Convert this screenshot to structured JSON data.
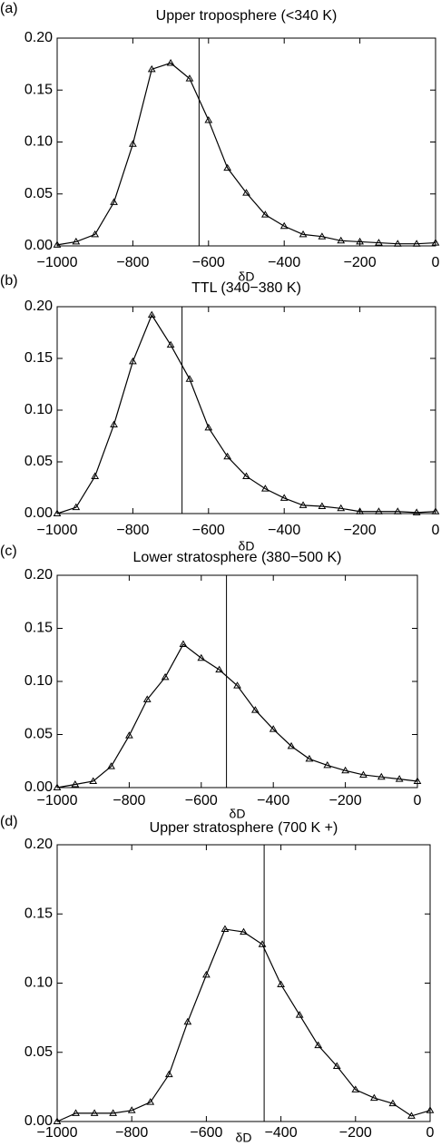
{
  "chart_data": [
    {
      "type": "line",
      "panel_label": "(a)",
      "title": "Upper troposphere (<340 K)",
      "x_label": "δD",
      "x": [
        -1000,
        -950,
        -900,
        -850,
        -800,
        -750,
        -700,
        -650,
        -600,
        -550,
        -500,
        -450,
        -400,
        -350,
        -300,
        -250,
        -200,
        -150,
        -100,
        -50,
        0
      ],
      "series": [
        {
          "color": "#000000",
          "values": [
            0.001,
            0.004,
            0.011,
            0.042,
            0.098,
            0.17,
            0.176,
            0.161,
            0.121,
            0.075,
            0.051,
            0.03,
            0.019,
            0.011,
            0.009,
            0.005,
            0.004,
            0.003,
            0.002,
            0.002,
            0.003
          ]
        }
      ],
      "vline": -625,
      "xlim": [
        -1000,
        0
      ],
      "ylim": [
        0,
        0.2
      ],
      "xticks": [
        {
          "value": -1000,
          "label": "−1000"
        },
        {
          "value": -800,
          "label": "−800"
        },
        {
          "value": -600,
          "label": "−600"
        },
        {
          "value": -400,
          "label": "−400"
        },
        {
          "value": -200,
          "label": "−200"
        },
        0
      ],
      "yticks": [
        {
          "value": 0,
          "label": "0.00"
        },
        {
          "value": 0.05,
          "label": "0.05"
        },
        {
          "value": 0.1,
          "label": "0.10"
        },
        {
          "value": 0.15,
          "label": "0.15"
        },
        {
          "value": 0.2,
          "label": "0.20"
        }
      ]
    },
    {
      "type": "line",
      "panel_label": "(b)",
      "title": "TTL (340−380 K)",
      "x_label": "δD",
      "x": [
        -1000,
        -950,
        -900,
        -850,
        -800,
        -750,
        -700,
        -650,
        -600,
        -550,
        -500,
        -450,
        -400,
        -350,
        -300,
        -250,
        -200,
        -150,
        -100,
        -50,
        0
      ],
      "series": [
        {
          "color": "#000000",
          "values": [
            0.0,
            0.006,
            0.036,
            0.086,
            0.147,
            0.192,
            0.163,
            0.13,
            0.083,
            0.055,
            0.036,
            0.024,
            0.015,
            0.008,
            0.007,
            0.005,
            0.002,
            0.002,
            0.002,
            0.001,
            0.002
          ]
        }
      ],
      "vline": -670,
      "xlim": [
        -1000,
        0
      ],
      "ylim": [
        0,
        0.2
      ],
      "xticks": [
        {
          "value": -1000,
          "label": "−1000"
        },
        {
          "value": -800,
          "label": "−800"
        },
        {
          "value": -600,
          "label": "−600"
        },
        {
          "value": -400,
          "label": "−400"
        },
        {
          "value": -200,
          "label": "−200"
        },
        0
      ],
      "yticks": [
        {
          "value": 0,
          "label": "0.00"
        },
        {
          "value": 0.05,
          "label": "0.05"
        },
        {
          "value": 0.1,
          "label": "0.10"
        },
        {
          "value": 0.15,
          "label": "0.15"
        },
        {
          "value": 0.2,
          "label": "0.20"
        }
      ]
    },
    {
      "type": "line",
      "panel_label": "(c)",
      "title": "Lower stratosphere (380−500 K)",
      "x_label": "δD",
      "x": [
        -1000,
        -950,
        -900,
        -850,
        -800,
        -750,
        -700,
        -650,
        -600,
        -550,
        -500,
        -450,
        -400,
        -350,
        -300,
        -250,
        -200,
        -150,
        -100,
        -50,
        0
      ],
      "series": [
        {
          "color": "#000000",
          "values": [
            0.0,
            0.003,
            0.006,
            0.02,
            0.049,
            0.083,
            0.104,
            0.135,
            0.122,
            0.111,
            0.096,
            0.073,
            0.055,
            0.039,
            0.027,
            0.021,
            0.016,
            0.012,
            0.01,
            0.008,
            0.006
          ]
        }
      ],
      "vline": -530,
      "xlim": [
        -1000,
        0
      ],
      "ylim": [
        0,
        0.2
      ],
      "xticks": [
        {
          "value": -1000,
          "label": "−1000"
        },
        {
          "value": -800,
          "label": "−800"
        },
        {
          "value": -600,
          "label": "−600"
        },
        {
          "value": -400,
          "label": "−400"
        },
        {
          "value": -200,
          "label": "−200"
        },
        0
      ],
      "yticks": [
        {
          "value": 0,
          "label": "0.00"
        },
        {
          "value": 0.05,
          "label": "0.05"
        },
        {
          "value": 0.1,
          "label": "0.10"
        },
        {
          "value": 0.15,
          "label": "0.15"
        },
        {
          "value": 0.2,
          "label": "0.20"
        }
      ]
    },
    {
      "type": "line",
      "panel_label": "(d)",
      "title": "Upper stratosphere (700 K +)",
      "x_label": "δD",
      "x": [
        -1000,
        -950,
        -900,
        -850,
        -800,
        -750,
        -700,
        -650,
        -600,
        -550,
        -500,
        -450,
        -400,
        -350,
        -300,
        -250,
        -200,
        -150,
        -100,
        -50,
        0
      ],
      "series": [
        {
          "color": "#000000",
          "values": [
            0.0,
            0.006,
            0.006,
            0.006,
            0.008,
            0.014,
            0.034,
            0.072,
            0.106,
            0.139,
            0.137,
            0.128,
            0.099,
            0.077,
            0.055,
            0.04,
            0.023,
            0.017,
            0.013,
            0.004,
            0.008
          ]
        }
      ],
      "vline": -445,
      "xlim": [
        -1000,
        0
      ],
      "ylim": [
        0,
        0.2
      ],
      "xticks": [
        {
          "value": -1000,
          "label": "−1000"
        },
        {
          "value": -800,
          "label": "−800"
        },
        {
          "value": -600,
          "label": "−600"
        },
        {
          "value": -400,
          "label": "−400"
        },
        {
          "value": -200,
          "label": "−200"
        },
        0
      ],
      "yticks": [
        {
          "value": 0,
          "label": "0.00"
        },
        {
          "value": 0.05,
          "label": "0.05"
        },
        {
          "value": 0.1,
          "label": "0.10"
        },
        {
          "value": 0.15,
          "label": "0.15"
        },
        {
          "value": 0.2,
          "label": "0.20"
        }
      ]
    }
  ]
}
